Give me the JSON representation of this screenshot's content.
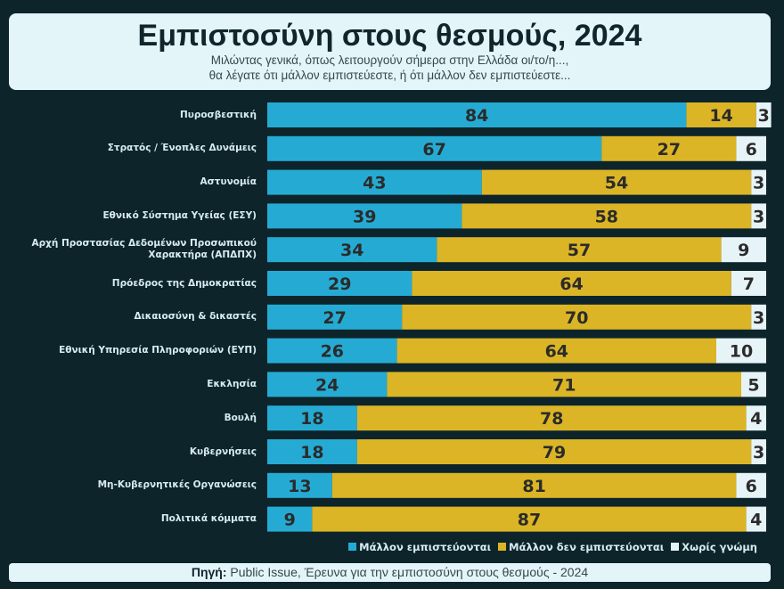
{
  "header": {
    "title": "Εμπιστοσύνη στους θεσμούς, 2024",
    "subtitle_line1": "Μιλώντας γενικά, όπως λειτουργούν σήμερα στην Ελλάδα οι/το/η...,",
    "subtitle_line2": "θα λέγατε ότι μάλλον εμπιστεύεστε, ή ότι μάλλον δεν εμπιστεύεστε..."
  },
  "source": {
    "label": "Πηγή:",
    "text": "Public Issue, Έρευνα για την εμπιστοσύνη στους θεσμούς - 2024"
  },
  "colors": {
    "trust": "#25abd3",
    "distrust": "#dbb526",
    "no_opinion": "#e6f4f8",
    "background": "#0d242b"
  },
  "chart_data": {
    "type": "bar",
    "orientation": "horizontal",
    "stacked": true,
    "title": "Εμπιστοσύνη στους θεσμούς, 2024",
    "legend_position": "bottom-right",
    "categories": [
      "Πυροσβεστική",
      "Στρατός / Ένοπλες Δυνάμεις",
      "Αστυνομία",
      "Εθνικό Σύστημα Υγείας (ΕΣΥ)",
      "Αρχή Προστασίας Δεδομένων Προσωπικού Χαρακτήρα (ΑΠΔΠΧ)",
      "Πρόεδρος της Δημοκρατίας",
      "Δικαιοσύνη & δικαστές",
      "Εθνική Υπηρεσία Πληροφοριών (ΕΥΠ)",
      "Εκκλησία",
      "Βουλή",
      "Κυβερνήσεις",
      "Μη-Κυβερνητικές Οργανώσεις",
      "Πολιτικά κόμματα"
    ],
    "series": [
      {
        "name": "Μάλλον εμπιστεύονται",
        "values": [
          84,
          67,
          43,
          39,
          34,
          29,
          27,
          26,
          24,
          18,
          18,
          13,
          9
        ]
      },
      {
        "name": "Μάλλον δεν εμπιστεύονται",
        "values": [
          14,
          27,
          54,
          58,
          57,
          64,
          70,
          64,
          71,
          78,
          79,
          81,
          87
        ]
      },
      {
        "name": "Χωρίς γνώμη",
        "values": [
          3,
          6,
          3,
          3,
          9,
          7,
          3,
          10,
          5,
          4,
          3,
          6,
          4
        ]
      }
    ]
  }
}
